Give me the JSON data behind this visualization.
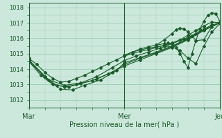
{
  "xlabel": "Pression niveau de la mer( hPa )",
  "bg_color": "#cce8dc",
  "grid_color": "#99ccb3",
  "line_color": "#1a5c2a",
  "xlim": [
    0,
    48
  ],
  "ylim": [
    1011.5,
    1018.3
  ],
  "yticks": [
    1012,
    1013,
    1014,
    1015,
    1016,
    1017,
    1018
  ],
  "xticks": [
    0,
    24,
    48
  ],
  "xticklabels": [
    "Mar",
    "Mer",
    "Jeu"
  ],
  "marker_series": [
    {
      "x": [
        0,
        2,
        4,
        6,
        8,
        10,
        12,
        14,
        16,
        18,
        20,
        22,
        24,
        26,
        28,
        30,
        32,
        34,
        36,
        38,
        40,
        42,
        44,
        46,
        48
      ],
      "y": [
        1014.7,
        1014.3,
        1013.8,
        1013.4,
        1013.15,
        1013.2,
        1013.4,
        1013.6,
        1013.85,
        1014.1,
        1014.35,
        1014.6,
        1014.85,
        1015.0,
        1015.15,
        1015.25,
        1015.4,
        1015.55,
        1015.7,
        1015.9,
        1016.2,
        1016.5,
        1016.8,
        1017.05,
        1017.0
      ]
    },
    {
      "x": [
        0,
        3,
        6,
        9,
        12,
        16,
        20,
        24,
        28,
        32,
        36,
        40,
        44,
        48
      ],
      "y": [
        1014.5,
        1013.6,
        1013.0,
        1012.85,
        1013.0,
        1013.25,
        1013.7,
        1014.2,
        1014.6,
        1015.0,
        1015.4,
        1015.9,
        1016.5,
        1017.0
      ]
    },
    {
      "x": [
        0,
        4,
        7,
        10,
        13,
        17,
        21,
        24,
        28,
        32,
        36,
        40,
        44,
        48
      ],
      "y": [
        1014.5,
        1013.5,
        1012.95,
        1012.85,
        1013.05,
        1013.35,
        1013.8,
        1014.3,
        1014.7,
        1015.05,
        1015.45,
        1015.95,
        1016.55,
        1017.0
      ]
    },
    {
      "x": [
        0,
        4,
        8,
        11,
        14,
        18,
        22,
        24,
        28,
        32,
        36,
        40,
        44,
        48
      ],
      "y": [
        1014.55,
        1013.45,
        1012.7,
        1012.65,
        1012.95,
        1013.3,
        1013.9,
        1014.4,
        1014.75,
        1015.1,
        1015.5,
        1016.0,
        1016.55,
        1017.0
      ]
    },
    {
      "x": [
        0,
        5,
        9,
        13,
        17,
        21,
        24,
        27,
        30,
        33,
        36,
        39,
        42,
        44,
        46,
        48
      ],
      "y": [
        1014.6,
        1013.3,
        1012.95,
        1013.1,
        1013.5,
        1014.1,
        1014.55,
        1014.85,
        1015.1,
        1015.35,
        1015.65,
        1015.95,
        1016.3,
        1016.6,
        1016.85,
        1017.0
      ]
    },
    {
      "x": [
        24,
        26,
        28,
        30,
        32,
        34,
        36,
        38,
        40,
        42,
        44,
        46,
        48
      ],
      "y": [
        1014.9,
        1015.1,
        1015.25,
        1015.35,
        1015.45,
        1015.5,
        1015.45,
        1015.2,
        1014.7,
        1014.35,
        1015.5,
        1016.4,
        1016.95
      ]
    },
    {
      "x": [
        24,
        26,
        28,
        30,
        32,
        34,
        35,
        36,
        37,
        38,
        39,
        40,
        41,
        42,
        43,
        44,
        45,
        46,
        47,
        48
      ],
      "y": [
        1014.85,
        1015.1,
        1015.3,
        1015.45,
        1015.55,
        1015.65,
        1015.7,
        1015.65,
        1015.4,
        1015.0,
        1014.5,
        1014.1,
        1015.0,
        1015.85,
        1016.6,
        1017.1,
        1017.5,
        1017.65,
        1017.6,
        1017.1
      ]
    },
    {
      "x": [
        32,
        34,
        36,
        37,
        38,
        39,
        40,
        41,
        42,
        44,
        46,
        48
      ],
      "y": [
        1015.55,
        1015.9,
        1016.3,
        1016.55,
        1016.65,
        1016.6,
        1016.4,
        1016.15,
        1015.85,
        1015.9,
        1016.75,
        1017.0
      ]
    }
  ]
}
